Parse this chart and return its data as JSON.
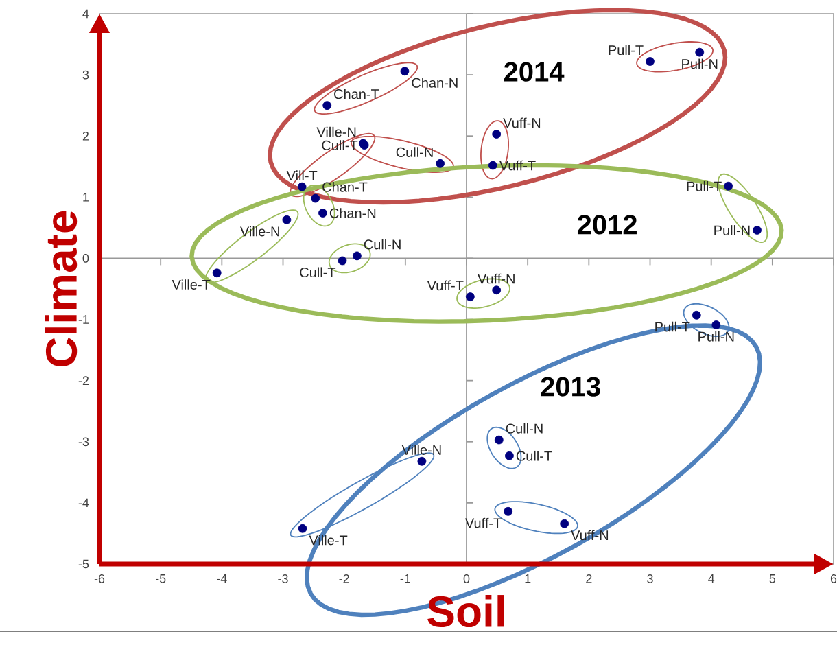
{
  "chart_data": {
    "type": "scatter",
    "xlabel": "Soil",
    "ylabel": "Climate",
    "xlim": [
      -6,
      6
    ],
    "ylim": [
      -5,
      4
    ],
    "xticks": [
      -6,
      -5,
      -4,
      -3,
      -2,
      -1,
      0,
      1,
      2,
      3,
      4,
      5,
      6
    ],
    "yticks": [
      -5,
      -4,
      -3,
      -2,
      -1,
      0,
      1,
      2,
      3,
      4
    ],
    "marker": "circle",
    "series": [
      {
        "name": "2014",
        "color": "#000080",
        "x": [
          3.0,
          3.81,
          -2.28,
          -1.01,
          -1.69,
          -2.69,
          -1.67,
          -0.43,
          0.49,
          0.43
        ],
        "values": [
          3.22,
          3.37,
          2.5,
          3.06,
          1.88,
          1.17,
          1.85,
          1.55,
          2.03,
          1.52
        ]
      },
      {
        "name": "2012",
        "color": "#000080",
        "x": [
          4.28,
          4.75,
          -2.47,
          -2.35,
          -2.94,
          -4.08,
          -2.03,
          -1.79,
          0.06,
          0.49
        ],
        "values": [
          1.18,
          0.46,
          0.98,
          0.74,
          0.63,
          -0.24,
          -0.04,
          0.04,
          -0.63,
          -0.52
        ]
      },
      {
        "name": "2013",
        "color": "#000080",
        "x": [
          3.76,
          4.08,
          0.53,
          0.7,
          -0.73,
          -2.68,
          0.68,
          1.6
        ],
        "values": [
          -0.93,
          -1.09,
          -2.97,
          -3.23,
          -3.32,
          -4.42,
          -4.14,
          -4.34
        ]
      }
    ],
    "annotations": [
      {
        "text": "Pull-T",
        "x": 3.0,
        "y": 3.22
      },
      {
        "text": "Pull-N",
        "x": 3.81,
        "y": 3.37
      },
      {
        "text": "Chan-T",
        "x": -2.28,
        "y": 2.5
      },
      {
        "text": "Chan-N",
        "x": -1.01,
        "y": 3.06
      },
      {
        "text": "Ville-N",
        "x": -1.69,
        "y": 1.88
      },
      {
        "text": "Vill-T",
        "x": -2.69,
        "y": 1.17
      },
      {
        "text": "Cull-T",
        "x": -1.67,
        "y": 1.85
      },
      {
        "text": "Cull-N",
        "x": -0.43,
        "y": 1.55
      },
      {
        "text": "Vuff-N",
        "x": 0.49,
        "y": 2.03
      },
      {
        "text": "Vuff-T",
        "x": 0.43,
        "y": 1.52
      },
      {
        "text": "Pull-T",
        "x": 4.28,
        "y": 1.18
      },
      {
        "text": "Pull-N",
        "x": 4.75,
        "y": 0.46
      },
      {
        "text": "Chan-T",
        "x": -2.47,
        "y": 0.98
      },
      {
        "text": "Chan-N",
        "x": -2.35,
        "y": 0.74
      },
      {
        "text": "Ville-N",
        "x": -2.94,
        "y": 0.63
      },
      {
        "text": "Ville-T",
        "x": -4.08,
        "y": -0.24
      },
      {
        "text": "Cull-T",
        "x": -2.03,
        "y": -0.04
      },
      {
        "text": "Cull-N",
        "x": -1.79,
        "y": 0.04
      },
      {
        "text": "Vuff-T",
        "x": 0.06,
        "y": -0.63
      },
      {
        "text": "Vuff-N",
        "x": 0.49,
        "y": -0.52
      },
      {
        "text": "Pull-T",
        "x": 3.76,
        "y": -0.93
      },
      {
        "text": "Pull-N",
        "x": 4.08,
        "y": -1.09
      },
      {
        "text": "Cull-N",
        "x": 0.53,
        "y": -2.97
      },
      {
        "text": "Cull-T",
        "x": 0.7,
        "y": -3.23
      },
      {
        "text": "Ville-N",
        "x": -0.73,
        "y": -3.32
      },
      {
        "text": "Ville-T",
        "x": -2.68,
        "y": -4.42
      },
      {
        "text": "Vuff-T",
        "x": 0.68,
        "y": -4.14
      },
      {
        "text": "Vuff-N",
        "x": 1.6,
        "y": -4.34
      }
    ]
  }
}
